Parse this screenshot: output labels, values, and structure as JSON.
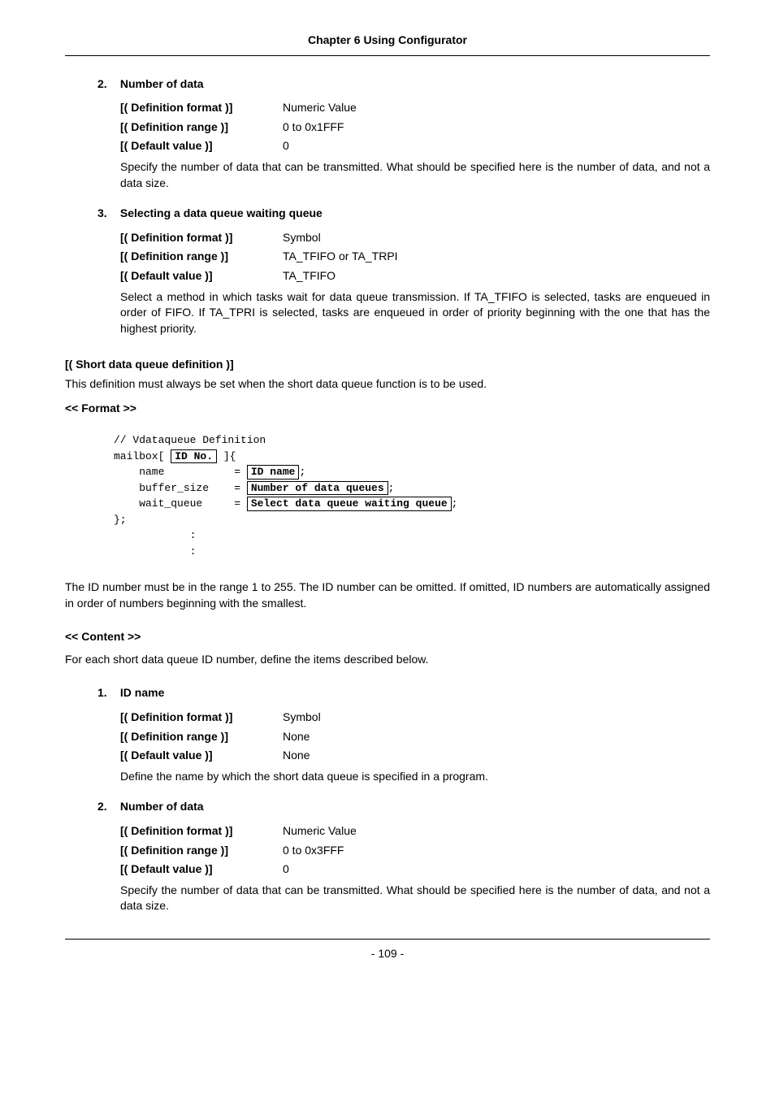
{
  "header": {
    "chapter": "Chapter 6 Using Configurator"
  },
  "items_top": [
    {
      "num": "2.",
      "title": "Number of data",
      "defs": [
        {
          "label": "[( Definition format )]",
          "value": "Numeric Value"
        },
        {
          "label": "[( Definition range )]",
          "value": "0 to 0x1FFF"
        },
        {
          "label": "[( Default value )]",
          "value": "0"
        }
      ],
      "desc": "Specify the number of data that can be transmitted. What should be specified here is the number of data, and not a data size."
    },
    {
      "num": "3.",
      "title": "Selecting a data queue waiting queue",
      "defs": [
        {
          "label": "[( Definition format )]",
          "value": "Symbol"
        },
        {
          "label": "[( Definition range )]",
          "value": "TA_TFIFO or TA_TRPI"
        },
        {
          "label": "[( Default value )]",
          "value": "TA_TFIFO"
        }
      ],
      "desc": "Select a method in which tasks wait for data queue transmission. If TA_TFIFO is selected, tasks are enqueued in order of FIFO. If TA_TPRI is selected, tasks are enqueued in order of priority beginning with the one that has the highest priority."
    }
  ],
  "short_def": {
    "title": "[( Short data queue definition )]",
    "text": "This definition must always be set when the short data queue function is to be used.",
    "format_label": "<< Format >>"
  },
  "code": {
    "l1": "// Vdataqueue Definition",
    "l2a": "mailbox[ ",
    "l2b": "ID No.",
    "l2c": " ]{",
    "l3a": "    name           = ",
    "l3b": "ID name",
    "l3c": ";",
    "l4a": "    buffer_size    = ",
    "l4b": "Number of data queues",
    "l4c": ";",
    "l5a": "    wait_queue     = ",
    "l5b": "Select data queue waiting queue",
    "l5c": ";",
    "l6": "};",
    "l7": "            :",
    "l8": "            :"
  },
  "id_para": "The ID number must be in the range 1 to 255. The ID number can be omitted. If omitted, ID numbers are automatically assigned in order of numbers beginning with the smallest.",
  "content_header": "<< Content >>",
  "content_intro": "For each short data queue ID number, define the items described below.",
  "items_bottom": [
    {
      "num": "1.",
      "title": "ID name",
      "defs": [
        {
          "label": "[( Definition format )]",
          "value": "Symbol"
        },
        {
          "label": "[( Definition range )]",
          "value": "None"
        },
        {
          "label": "[( Default value )]",
          "value": "None"
        }
      ],
      "desc": "Define the name by which the short data queue is specified in a program."
    },
    {
      "num": "2.",
      "title": "Number of data",
      "defs": [
        {
          "label": "[( Definition format )]",
          "value": "Numeric Value"
        },
        {
          "label": "[( Definition range )]",
          "value": "0 to 0x3FFF"
        },
        {
          "label": "[( Default value )]",
          "value": "0"
        }
      ],
      "desc": "Specify the number of data that can be transmitted. What should be specified here is the number of data, and not a data size."
    }
  ],
  "footer": {
    "page": "- 109 -"
  }
}
